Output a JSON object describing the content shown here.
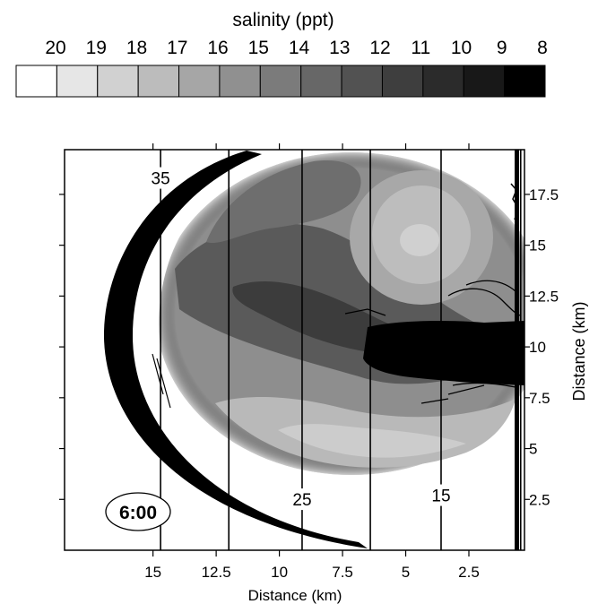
{
  "colorbar": {
    "title": "salinity (ppt)",
    "labels": [
      "20",
      "19",
      "18",
      "17",
      "16",
      "15",
      "14",
      "13",
      "12",
      "11",
      "10",
      "9",
      "8"
    ],
    "colors": [
      "#ffffff",
      "#e6e6e6",
      "#d1d1d1",
      "#bcbcbc",
      "#a6a6a6",
      "#909090",
      "#7b7b7b",
      "#676767",
      "#525252",
      "#3e3e3e",
      "#2b2b2b",
      "#181818",
      "#000000"
    ]
  },
  "time_label": "6:00",
  "chart_data": {
    "type": "heatmap",
    "title": "",
    "xlabel": "Distance (km)",
    "ylabel": "Distance (km)",
    "xlim": [
      18.5,
      0.3
    ],
    "ylim": [
      0,
      19.7
    ],
    "x_axis_reversed": true,
    "x_ticks": [
      15,
      12.5,
      10,
      7.5,
      5,
      2.5
    ],
    "x_tick_labels": [
      "15",
      "12.5",
      "10",
      "7.5",
      "5",
      "2.5"
    ],
    "y_ticks": [
      2.5,
      5,
      7.5,
      10,
      12.5,
      15,
      17.5
    ],
    "y_tick_labels": [
      "2.5",
      "5",
      "7.5",
      "10",
      "12.5",
      "15",
      "17.5"
    ],
    "y_axis_side": "right",
    "vertical_lines_x": [
      14.7,
      12.0,
      9.1,
      6.4,
      3.6,
      0.45
    ],
    "line_labels": [
      {
        "text": "35",
        "x": 14.7,
        "y": 18.0
      },
      {
        "text": "25",
        "x": 9.1,
        "y": 2.2
      },
      {
        "text": "15",
        "x": 3.6,
        "y": 2.4
      }
    ],
    "plume": {
      "salinity_range_ppt": [
        8,
        20
      ],
      "front_arc_outer_x_km": 16.1,
      "center_y_km": 10.5
    }
  }
}
